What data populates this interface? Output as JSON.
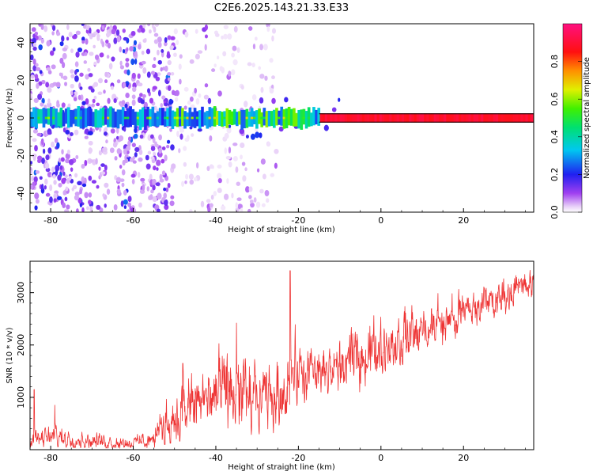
{
  "title": "C2E6.2025.143.21.33.E33",
  "chart_data": [
    {
      "type": "heatmap",
      "xlabel": "Height of straight line (km)",
      "ylabel": "Frequency (Hz)",
      "xlim": [
        -85,
        37
      ],
      "ylim": [
        -50,
        50
      ],
      "xticks": [
        -80,
        -60,
        -40,
        -20,
        0,
        20
      ],
      "yticks": [
        -40,
        -20,
        0,
        20,
        40
      ],
      "colorbar": {
        "label": "Normalized spectral amplitude",
        "range": [
          0,
          1
        ],
        "ticks": [
          "0.0",
          "0.2",
          "0.4",
          "0.6",
          "0.8"
        ],
        "colormap": "rainbow (violet-blue-cyan-green-yellow-orange-red-magenta)"
      },
      "features": {
        "central_band_frequency_hz": 0,
        "central_band_halfwidth_hz": 2,
        "scatter_region_km": [
          -85,
          -50
        ],
        "strong_band_from_km": -15
      },
      "grid": false
    },
    {
      "type": "line",
      "xlabel": "Height of straight line (km)",
      "ylabel": "SNR (10 * v/v)",
      "xlim": [
        -85,
        37
      ],
      "ylim": [
        0,
        3600
      ],
      "xticks": [
        -80,
        -60,
        -40,
        -20,
        0,
        20
      ],
      "yticks": [
        1000,
        2000,
        3000
      ],
      "color": "#ee3333",
      "envelope": {
        "x": [
          -85,
          -80,
          -75,
          -70,
          -65,
          -60,
          -55,
          -52,
          -48,
          -45,
          -40,
          -35,
          -30,
          -25,
          -22,
          -20,
          -15,
          -10,
          -5,
          0,
          5,
          10,
          15,
          20,
          25,
          30,
          37
        ],
        "low": [
          50,
          80,
          60,
          50,
          40,
          40,
          60,
          150,
          250,
          400,
          550,
          400,
          300,
          500,
          900,
          1000,
          1000,
          1150,
          1350,
          1550,
          1700,
          1900,
          2050,
          2250,
          2500,
          2700,
          2950
        ],
        "high": [
          350,
          500,
          450,
          350,
          300,
          280,
          450,
          1100,
          1400,
          1650,
          1900,
          2100,
          1800,
          1700,
          2400,
          2200,
          2100,
          2300,
          2500,
          2650,
          2800,
          2900,
          3000,
          3150,
          3300,
          3400,
          3550
        ]
      },
      "spikes": [
        {
          "x": -22,
          "y": 3420
        },
        {
          "x": -35,
          "y": 2420
        },
        {
          "x": -48,
          "y": 1650
        },
        {
          "x": -84,
          "y": 1150
        },
        {
          "x": -79,
          "y": 850
        }
      ]
    }
  ]
}
